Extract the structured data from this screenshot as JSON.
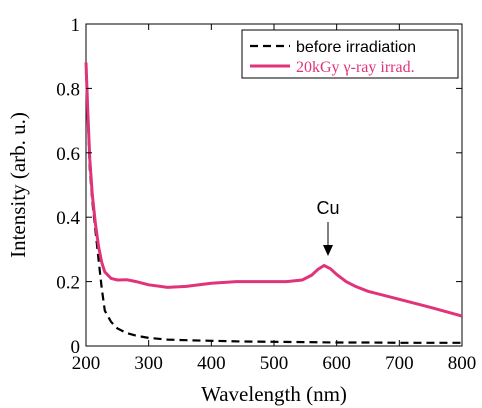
{
  "chart_data": {
    "type": "line",
    "title": "",
    "xlabel": "Wavelength (nm)",
    "ylabel": "Intensity (arb. u.)",
    "xlim": [
      200,
      800
    ],
    "ylim": [
      0,
      1
    ],
    "xticks": [
      200,
      300,
      400,
      500,
      600,
      700,
      800
    ],
    "yticks": [
      0,
      0.2,
      0.4,
      0.6,
      0.8,
      1
    ],
    "ytick_labels": [
      "0",
      "0.2",
      "0.4",
      "0.6",
      "0.8",
      "1"
    ],
    "grid": false,
    "legend_position": "top-right",
    "series": [
      {
        "name": "before irradiation",
        "color": "#000000",
        "dash": "dashed",
        "x": [
          200,
          203,
          206,
          210,
          215,
          220,
          225,
          230,
          240,
          250,
          265,
          280,
          300,
          330,
          360,
          400,
          450,
          500,
          550,
          600,
          650,
          700,
          750,
          800
        ],
        "y": [
          0.85,
          0.7,
          0.55,
          0.45,
          0.36,
          0.27,
          0.18,
          0.11,
          0.075,
          0.055,
          0.04,
          0.032,
          0.025,
          0.02,
          0.018,
          0.016,
          0.014,
          0.013,
          0.012,
          0.011,
          0.011,
          0.01,
          0.01,
          0.01
        ]
      },
      {
        "name": "20kGy γ-ray irrad.",
        "color": "#e0337a",
        "dash": "solid",
        "x": [
          200,
          203,
          206,
          210,
          215,
          220,
          225,
          230,
          240,
          250,
          265,
          280,
          300,
          330,
          360,
          400,
          440,
          480,
          520,
          545,
          560,
          570,
          580,
          590,
          600,
          615,
          630,
          650,
          700,
          750,
          800
        ],
        "y": [
          0.88,
          0.72,
          0.58,
          0.47,
          0.38,
          0.31,
          0.26,
          0.23,
          0.21,
          0.205,
          0.206,
          0.2,
          0.19,
          0.182,
          0.185,
          0.195,
          0.2,
          0.2,
          0.2,
          0.205,
          0.22,
          0.238,
          0.25,
          0.24,
          0.222,
          0.2,
          0.185,
          0.17,
          0.145,
          0.12,
          0.093
        ]
      }
    ],
    "annotations": [
      {
        "text": "Cu",
        "x": 583,
        "y": 0.25
      }
    ]
  }
}
